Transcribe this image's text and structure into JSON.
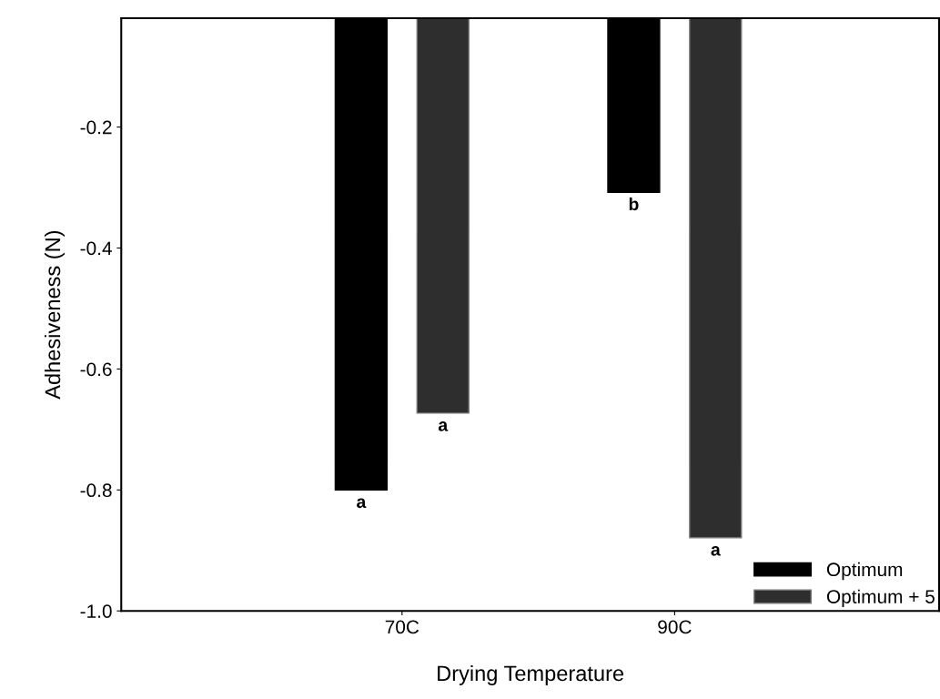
{
  "chart_data": {
    "type": "bar",
    "xlabel": "Drying Temperature",
    "ylabel": "Adhesiveness (N)",
    "categories": [
      "70C",
      "90C"
    ],
    "series": [
      {
        "name": "Optimum",
        "color": "#000000",
        "values": [
          -0.8,
          -0.308
        ],
        "value_labels": [
          "a",
          "b"
        ]
      },
      {
        "name": "Optimum + 5",
        "color": "#2e2e2e",
        "values": [
          -0.673,
          -0.879
        ],
        "value_labels": [
          "a",
          "a"
        ]
      }
    ],
    "ylim": [
      -1.0,
      -0.02
    ],
    "yticks": [
      {
        "value": -1.0,
        "label": "-1.0"
      },
      -0.8,
      -0.6,
      -0.4,
      -0.2
    ],
    "grid": false,
    "legend": "bottom right"
  }
}
